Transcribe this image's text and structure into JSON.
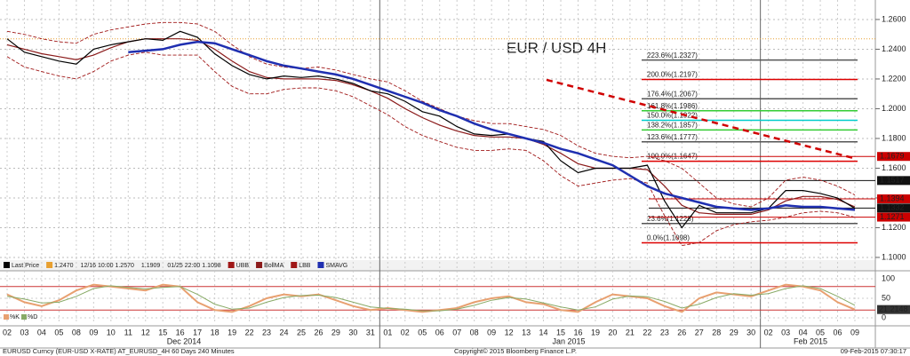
{
  "chart_data": {
    "type": "line",
    "title": "EUR / USD 4H",
    "categories": [
      "02",
      "03",
      "04",
      "05",
      "08",
      "09",
      "10",
      "11",
      "12",
      "15",
      "16",
      "17",
      "18",
      "19",
      "22",
      "23",
      "24",
      "25",
      "26",
      "29",
      "30",
      "31",
      "01",
      "02",
      "05",
      "06",
      "07",
      "08",
      "09",
      "12",
      "13",
      "14",
      "15",
      "16",
      "19",
      "20",
      "21",
      "22",
      "23",
      "26",
      "27",
      "28",
      "29",
      "30",
      "02",
      "03",
      "04",
      "05",
      "06",
      "09"
    ],
    "month_labels": [
      "Dec 2014",
      "Jan 2015",
      "Feb 2015"
    ],
    "ylim": [
      1.0952,
      1.2731
    ],
    "yticks": [
      {
        "value": 1.1,
        "label": "1.1000"
      },
      {
        "value": 1.12,
        "label": "1.1200"
      },
      {
        "value": 1.14,
        "label": "1.1400"
      },
      {
        "value": 1.16,
        "label": "1.1600"
      },
      {
        "value": 1.18,
        "label": "1.1800"
      },
      {
        "value": 1.2,
        "label": "1.2000"
      },
      {
        "value": 1.22,
        "label": "1.2200"
      },
      {
        "value": 1.24,
        "label": "1.2400"
      },
      {
        "value": 1.26,
        "label": "1.2600"
      }
    ],
    "grid": true,
    "series": [
      {
        "name": "UBB",
        "color": "#a01818",
        "dash": true,
        "values": [
          1.252,
          1.25,
          1.247,
          1.245,
          1.244,
          1.25,
          1.253,
          1.255,
          1.257,
          1.258,
          1.258,
          1.257,
          1.252,
          1.243,
          1.235,
          1.23,
          1.228,
          1.227,
          1.228,
          1.226,
          1.223,
          1.22,
          1.218,
          1.212,
          1.205,
          1.2,
          1.195,
          1.192,
          1.19,
          1.19,
          1.188,
          1.186,
          1.182,
          1.175,
          1.17,
          1.168,
          1.167,
          1.168,
          1.165,
          1.16,
          1.15,
          1.14,
          1.136,
          1.134,
          1.14,
          1.152,
          1.154,
          1.152,
          1.148,
          1.142
        ]
      },
      {
        "name": "LBB",
        "color": "#a01818",
        "dash": true,
        "values": [
          1.235,
          1.228,
          1.225,
          1.222,
          1.22,
          1.225,
          1.232,
          1.236,
          1.238,
          1.236,
          1.236,
          1.236,
          1.225,
          1.215,
          1.21,
          1.21,
          1.213,
          1.214,
          1.214,
          1.212,
          1.208,
          1.202,
          1.196,
          1.188,
          1.182,
          1.178,
          1.174,
          1.172,
          1.172,
          1.173,
          1.172,
          1.165,
          1.155,
          1.148,
          1.15,
          1.152,
          1.153,
          1.15,
          1.128,
          1.108,
          1.11,
          1.118,
          1.122,
          1.124,
          1.125,
          1.127,
          1.13,
          1.131,
          1.13,
          1.127
        ]
      },
      {
        "name": "BollMA",
        "color": "#8b1a1a",
        "dash": false,
        "values": [
          1.243,
          1.24,
          1.237,
          1.235,
          1.233,
          1.236,
          1.241,
          1.245,
          1.247,
          1.247,
          1.247,
          1.246,
          1.24,
          1.232,
          1.225,
          1.221,
          1.22,
          1.22,
          1.22,
          1.219,
          1.216,
          1.212,
          1.207,
          1.2,
          1.194,
          1.189,
          1.185,
          1.182,
          1.181,
          1.181,
          1.18,
          1.176,
          1.17,
          1.163,
          1.16,
          1.16,
          1.16,
          1.159,
          1.148,
          1.135,
          1.13,
          1.129,
          1.129,
          1.129,
          1.132,
          1.138,
          1.141,
          1.141,
          1.139,
          1.134
        ]
      },
      {
        "name": "Last Price",
        "color": "#000000",
        "dash": false,
        "values": [
          1.247,
          1.238,
          1.235,
          1.232,
          1.23,
          1.24,
          1.243,
          1.245,
          1.247,
          1.246,
          1.252,
          1.248,
          1.237,
          1.229,
          1.223,
          1.22,
          1.222,
          1.221,
          1.222,
          1.22,
          1.217,
          1.212,
          1.21,
          1.205,
          1.198,
          1.195,
          1.188,
          1.183,
          1.182,
          1.183,
          1.18,
          1.178,
          1.165,
          1.157,
          1.16,
          1.16,
          1.16,
          1.162,
          1.138,
          1.12,
          1.135,
          1.13,
          1.13,
          1.13,
          1.133,
          1.145,
          1.145,
          1.143,
          1.14,
          1.133
        ]
      },
      {
        "name": "SMAVG",
        "color": "#1f2fb0",
        "dash": false,
        "values": [
          null,
          null,
          null,
          null,
          null,
          null,
          null,
          1.238,
          1.239,
          1.24,
          1.243,
          1.245,
          1.244,
          1.24,
          1.236,
          1.232,
          1.229,
          1.227,
          1.225,
          1.223,
          1.22,
          1.216,
          1.212,
          1.208,
          1.204,
          1.199,
          1.195,
          1.19,
          1.186,
          1.183,
          1.18,
          1.177,
          1.173,
          1.17,
          1.166,
          1.162,
          1.155,
          1.148,
          1.143,
          1.14,
          1.137,
          1.134,
          1.133,
          1.132,
          1.133,
          1.135,
          1.134,
          1.134,
          1.133,
          1.132
        ]
      }
    ],
    "reference_line": {
      "value": 1.247,
      "label": "1.2470",
      "color": "#e8a030"
    },
    "legend_stats": [
      "12/16 10:00 1.2570",
      "1.1909",
      "01/25 22:00 1.1098"
    ],
    "trend_line": {
      "values": [
        1.2194,
        1.1669
      ],
      "color": "#d00000"
    },
    "fib_levels": [
      {
        "label": "223.6%(1.2327)",
        "value": 1.2327,
        "color": "#555555"
      },
      {
        "label": "200.0%(1.2197)",
        "value": 1.2197,
        "color": "#dd0000"
      },
      {
        "label": "176.4%(1.2067)",
        "value": 1.2067,
        "color": "#555555"
      },
      {
        "label": "161.8%(1.1986)",
        "value": 1.1986,
        "color": "#33cc33"
      },
      {
        "label": "150.0%(1.1922)",
        "value": 1.1922,
        "color": "#00cccc"
      },
      {
        "label": "138.2%(1.1857)",
        "value": 1.1857,
        "color": "#33cc33"
      },
      {
        "label": "123.6%(1.1777)",
        "value": 1.1777,
        "color": "#555555"
      },
      {
        "label": "100.0%(1.1647)",
        "value": 1.1647,
        "color": "#dd0000"
      },
      {
        "label": "23.6%(1.1228)",
        "value": 1.1228,
        "color": "#555555"
      },
      {
        "label": "0.0%(1.1098)",
        "value": 1.1098,
        "color": "#dd0000"
      }
    ],
    "price_tags": [
      {
        "value": 1.1679,
        "label": "1.1679",
        "color": "#cc0000"
      },
      {
        "value": 1.1517,
        "label": "1.1517",
        "color": "#111111"
      },
      {
        "value": 1.1394,
        "label": "1.1394",
        "color": "#cc0000"
      },
      {
        "value": 1.1332,
        "label": "1.1332",
        "color": "#111111"
      },
      {
        "value": 1.1271,
        "label": "1.1271",
        "color": "#cc0000"
      }
    ],
    "oscillator": {
      "ylim": [
        0,
        100
      ],
      "yticks": [
        0,
        50,
        100
      ],
      "bands": [
        80,
        20
      ],
      "series": [
        {
          "name": "%K",
          "color": "#e8a070",
          "values": [
            60,
            40,
            30,
            45,
            70,
            85,
            80,
            75,
            70,
            85,
            80,
            40,
            20,
            15,
            30,
            50,
            60,
            55,
            60,
            45,
            30,
            20,
            25,
            20,
            15,
            20,
            25,
            40,
            50,
            55,
            40,
            35,
            20,
            15,
            40,
            60,
            55,
            50,
            30,
            15,
            50,
            65,
            60,
            55,
            70,
            85,
            80,
            70,
            40,
            21.2148
          ]
        },
        {
          "name": "%D",
          "color": "#88aa66",
          "values": [
            55,
            48,
            38,
            40,
            55,
            75,
            82,
            78,
            74,
            78,
            80,
            60,
            35,
            22,
            25,
            40,
            52,
            57,
            58,
            52,
            40,
            28,
            24,
            22,
            18,
            18,
            22,
            32,
            45,
            52,
            48,
            38,
            28,
            20,
            28,
            48,
            56,
            54,
            42,
            25,
            35,
            52,
            62,
            58,
            62,
            75,
            82,
            75,
            55,
            32
          ]
        }
      ]
    },
    "footer": {
      "left": "EURUSD Curncy (EUR-USD X-RATE) AT_EURUSD_4H 60 Days 240 Minutes",
      "center": "Copyright© 2015 Bloomberg Finance L.P.",
      "right": "09-Feb-2015 07:30:17"
    }
  }
}
